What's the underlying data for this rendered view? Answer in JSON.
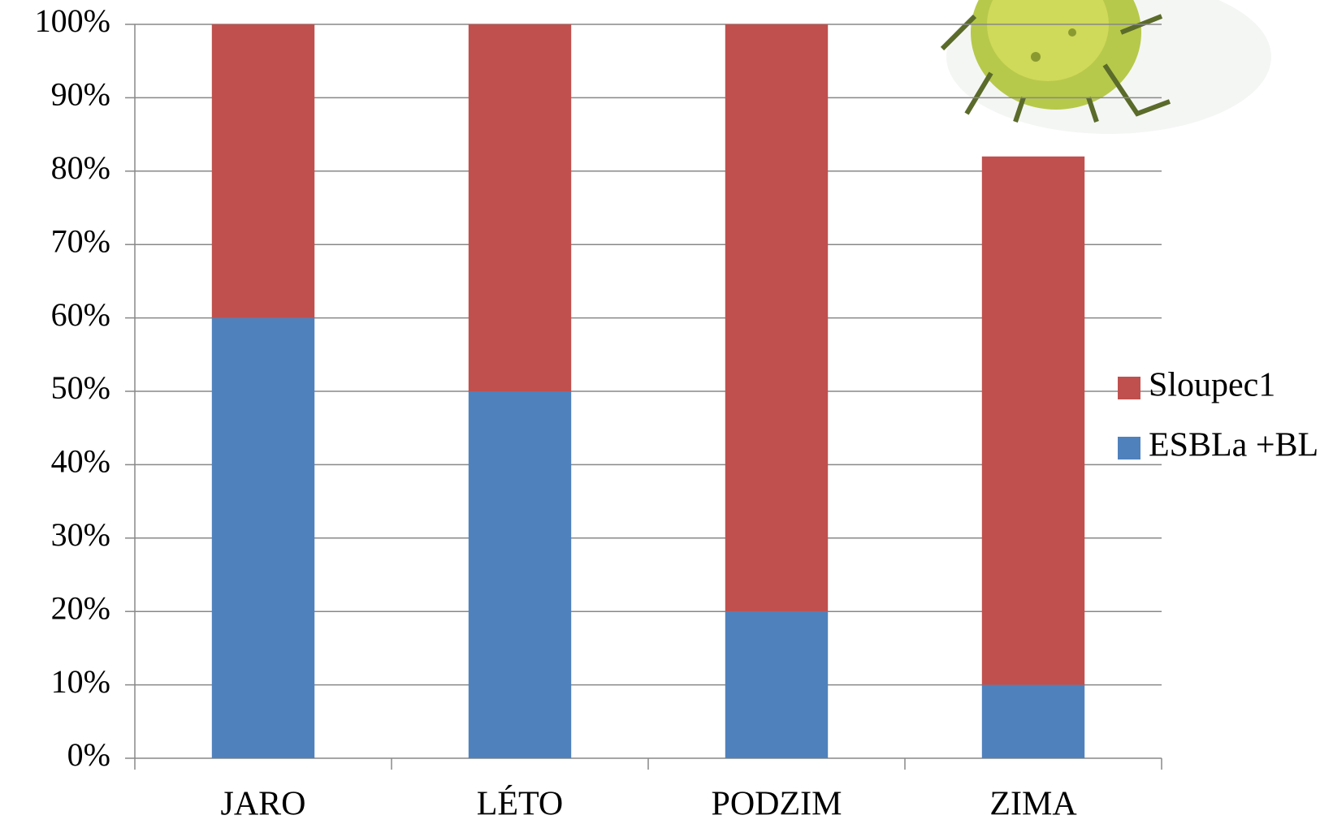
{
  "chart_data": {
    "type": "stacked-bar",
    "categories": [
      "JARO",
      "LÉTO",
      "PODZIM",
      "ZIMA"
    ],
    "series": [
      {
        "name": "ESBLa +BL",
        "color": "#4f81bd",
        "values": [
          60,
          50,
          20,
          10
        ]
      },
      {
        "name": "Sloupec1",
        "color": "#c0504d",
        "values": [
          40,
          50,
          80,
          72
        ]
      }
    ],
    "ylim": [
      0,
      100
    ],
    "yticks": [
      {
        "value": 0,
        "label": "0%"
      },
      {
        "value": 10,
        "label": "10%"
      },
      {
        "value": 20,
        "label": "20%"
      },
      {
        "value": 30,
        "label": "30%"
      },
      {
        "value": 40,
        "label": "40%"
      },
      {
        "value": 50,
        "label": "50%"
      },
      {
        "value": 60,
        "label": "60%"
      },
      {
        "value": 70,
        "label": "70%"
      },
      {
        "value": 80,
        "label": "80%"
      },
      {
        "value": 90,
        "label": "90%"
      },
      {
        "value": 100,
        "label": "100%"
      }
    ],
    "grid": true,
    "legend": "right"
  }
}
